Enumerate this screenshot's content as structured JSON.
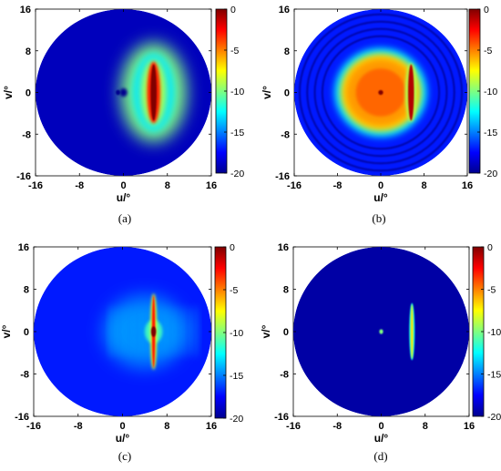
{
  "chart_data": [
    {
      "type": "heatmap",
      "panel": "(a)",
      "xlabel": "u/°",
      "ylabel": "v/°",
      "xlim": [
        -16,
        16
      ],
      "ylim": [
        -16,
        16
      ],
      "x_ticks": [
        "-16",
        "-8",
        "0",
        "8",
        "16"
      ],
      "y_ticks": [
        "16",
        "8",
        "0",
        "-8",
        "-16"
      ],
      "colorbar": {
        "range": [
          -20,
          0
        ],
        "ticks": [
          "0",
          "-5",
          "-10",
          "-15",
          "-20"
        ]
      },
      "background_level": -19,
      "features": [
        {
          "kind": "glow-ellipse",
          "u": 5.5,
          "v": 0,
          "ru": 6,
          "rv": 9.5,
          "level": -10
        },
        {
          "kind": "ellipse",
          "u": 5.5,
          "v": 0,
          "ru": 3.8,
          "rv": 7.5,
          "level": -13
        },
        {
          "kind": "ellipse",
          "u": 5.5,
          "v": 0,
          "ru": 2.3,
          "rv": 6.3,
          "level": -9
        },
        {
          "kind": "ellipse",
          "u": 5.5,
          "v": 0,
          "ru": 1.2,
          "rv": 5.9,
          "level": -3
        },
        {
          "kind": "ellipse",
          "u": 5.5,
          "v": 0,
          "ru": 0.55,
          "rv": 5.4,
          "level": 0
        },
        {
          "kind": "ellipse",
          "u": 0,
          "v": 0,
          "ru": 0.7,
          "rv": 0.8,
          "level": -20
        },
        {
          "kind": "ellipse",
          "u": -1,
          "v": 0,
          "ru": 0.4,
          "rv": 0.5,
          "level": -20
        }
      ]
    },
    {
      "type": "heatmap",
      "panel": "(b)",
      "xlabel": "u/°",
      "ylabel": "v/°",
      "xlim": [
        -16,
        16
      ],
      "ylim": [
        -16,
        16
      ],
      "x_ticks": [
        "-16",
        "-8",
        "0",
        "8",
        "16"
      ],
      "y_ticks": [
        "16",
        "8",
        "0",
        "-8",
        "-16"
      ],
      "colorbar": {
        "range": [
          -20,
          0
        ],
        "ticks": [
          "0",
          "-5",
          "-10",
          "-15",
          "-20"
        ]
      },
      "background_level": -17,
      "rings": [
        15,
        13.6,
        12.2,
        10.8
      ],
      "features": [
        {
          "kind": "ellipse",
          "u": 0,
          "v": 0,
          "ru": 8.6,
          "rv": 8.6,
          "level": -13
        },
        {
          "kind": "ellipse",
          "u": 0,
          "v": 0,
          "ru": 7.4,
          "rv": 7.4,
          "level": -7
        },
        {
          "kind": "ellipse",
          "u": 0,
          "v": 0,
          "ru": 6.6,
          "rv": 6.6,
          "level": -5.5
        },
        {
          "kind": "ellipse",
          "u": 0,
          "v": 0,
          "ru": 4.6,
          "rv": 4.6,
          "level": -4.5
        },
        {
          "kind": "ellipse",
          "u": 0,
          "v": 0,
          "ru": 0.45,
          "rv": 0.45,
          "level": 0
        },
        {
          "kind": "ellipse",
          "u": 5.6,
          "v": 0,
          "ru": 1.1,
          "rv": 5.6,
          "level": -9
        },
        {
          "kind": "ellipse",
          "u": 5.6,
          "v": 0,
          "ru": 0.55,
          "rv": 5.4,
          "level": -1
        }
      ]
    },
    {
      "type": "heatmap",
      "panel": "(c)",
      "xlabel": "u/°",
      "ylabel": "v/°",
      "xlim": [
        -16,
        16
      ],
      "ylim": [
        -16,
        16
      ],
      "x_ticks": [
        "-16",
        "-8",
        "0",
        "8",
        "16"
      ],
      "y_ticks": [
        "16",
        "8",
        "0",
        "-8",
        "-16"
      ],
      "colorbar": {
        "range": [
          -20,
          0
        ],
        "ticks": [
          "0",
          "-5",
          "-10",
          "-15",
          "-20"
        ]
      },
      "background_level": -17,
      "features": [
        {
          "kind": "glow-ellipse",
          "u": 4,
          "v": 0,
          "ru": 7.5,
          "rv": 7,
          "level": -15
        },
        {
          "kind": "ellipse",
          "u": 5.6,
          "v": 0,
          "ru": 1.6,
          "rv": 2.2,
          "level": -11
        },
        {
          "kind": "ellipse",
          "u": 5.6,
          "v": 0,
          "ru": 0.6,
          "rv": 7.2,
          "level": -8
        },
        {
          "kind": "ellipse",
          "u": 5.6,
          "v": 0,
          "ru": 0.3,
          "rv": 6.8,
          "level": -3
        },
        {
          "kind": "ellipse",
          "u": 5.6,
          "v": 0,
          "ru": 0.45,
          "rv": 1.0,
          "level": 0
        }
      ]
    },
    {
      "type": "heatmap",
      "panel": "(d)",
      "xlabel": "u/°",
      "ylabel": "v/°",
      "xlim": [
        -16,
        16
      ],
      "ylim": [
        -16,
        16
      ],
      "x_ticks": [
        "-16",
        "-8",
        "0",
        "8",
        "16"
      ],
      "y_ticks": [
        "16",
        "8",
        "0",
        "-8",
        "-16"
      ],
      "colorbar": {
        "range": [
          -20,
          0
        ],
        "ticks": [
          "0",
          "-5",
          "-10",
          "-15",
          "-20"
        ]
      },
      "background_level": -19.5,
      "features": [
        {
          "kind": "ellipse",
          "u": 5.6,
          "v": 0,
          "ru": 0.5,
          "rv": 5.4,
          "level": -12
        },
        {
          "kind": "ellipse",
          "u": 5.6,
          "v": 0,
          "ru": 0.22,
          "rv": 5.1,
          "level": -7
        },
        {
          "kind": "ellipse",
          "u": 0,
          "v": 0,
          "ru": 0.35,
          "rv": 0.45,
          "level": -10
        }
      ]
    }
  ]
}
